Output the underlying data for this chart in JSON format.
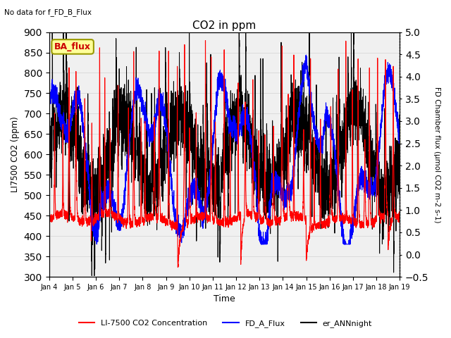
{
  "title": "CO2 in ppm",
  "subtitle": "No data for f_FD_B_Flux",
  "xlabel": "Time",
  "ylabel_left": "LI7500 CO2 (ppm)",
  "ylabel_right": "FD Chamber flux (μmol CO2 m-2 s-1)",
  "ylim_left": [
    300,
    900
  ],
  "ylim_right": [
    -0.5,
    5.0
  ],
  "yticks_left": [
    300,
    350,
    400,
    450,
    500,
    550,
    600,
    650,
    700,
    750,
    800,
    850,
    900
  ],
  "yticks_right": [
    -0.5,
    0.0,
    0.5,
    1.0,
    1.5,
    2.0,
    2.5,
    3.0,
    3.5,
    4.0,
    4.5,
    5.0
  ],
  "xlabels": [
    "Jan 4",
    "Jan 5",
    "Jan 6",
    "Jan 7",
    "Jan 8",
    "Jan 9",
    "Jan 10",
    "Jan 11",
    "Jan 12",
    "Jan 13",
    "Jan 14",
    "Jan 15",
    "Jan 16",
    "Jan 17",
    "Jan 18",
    "Jan 19"
  ],
  "legend_label_box": "BA_flux",
  "legend_entries": [
    {
      "label": "LI-7500 CO2 Concentration",
      "color": "#ff0000",
      "lw": 1.5
    },
    {
      "label": "FD_A_Flux",
      "color": "#0000ff",
      "lw": 1.5
    },
    {
      "label": "er_ANNnight",
      "color": "#000000",
      "lw": 1.5
    }
  ],
  "seed": 42,
  "n_points": 5000,
  "background_color": "#f0f0f0",
  "plot_bg_color": "#ffffff"
}
